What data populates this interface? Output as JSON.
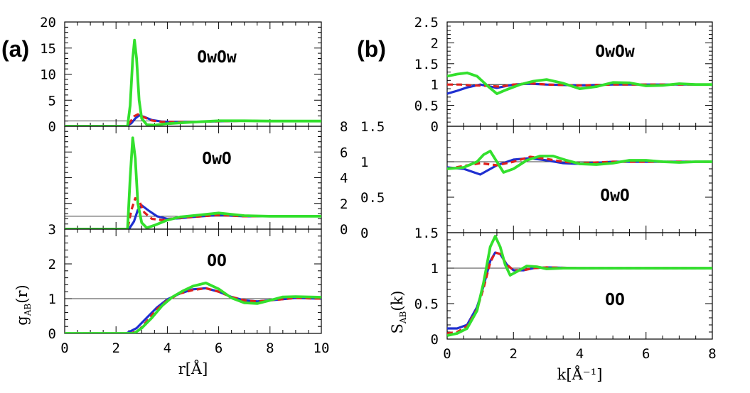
{
  "chart_data": [
    {
      "id": "a",
      "panel_label": "(a)",
      "type": "line",
      "xlabel": {
        "main": "r",
        "unit_open": "[",
        "unit": "Å",
        "unit_close": "]"
      },
      "ylabel": {
        "main": "g",
        "sub": "AB",
        "arg": "(r)"
      },
      "xlim": [
        0,
        10
      ],
      "xticks": [
        "0",
        "2",
        "4",
        "6",
        "8",
        "10"
      ],
      "legend": [],
      "series_style": {
        "blue": "#1f2fd0",
        "red": "#e0201c",
        "green": "#33e02d"
      },
      "subplots": [
        {
          "name": "OwOw",
          "label": "OwOw",
          "ylim": [
            0,
            20
          ],
          "y_side": "left",
          "yticks": [
            "0",
            "5",
            "10",
            "15",
            "20"
          ],
          "reference_line": 1,
          "series": [
            {
              "name": "blue",
              "x": [
                0,
                2.4,
                2.6,
                2.75,
                2.9,
                3.1,
                3.4,
                3.8,
                4.3,
                5,
                6,
                7,
                8,
                9,
                10
              ],
              "y": [
                0,
                0,
                0.6,
                1.5,
                2.1,
                1.8,
                1.2,
                0.9,
                0.8,
                0.85,
                0.95,
                1.05,
                1.0,
                1.0,
                1.0
              ]
            },
            {
              "name": "red",
              "dash": true,
              "x": [
                0,
                2.4,
                2.55,
                2.7,
                2.85,
                3.1,
                3.4,
                3.8,
                4.3,
                5,
                6,
                7,
                8,
                9,
                10
              ],
              "y": [
                0,
                0,
                0.8,
                1.9,
                2.3,
                1.7,
                1.1,
                0.85,
                0.8,
                0.85,
                0.95,
                1.05,
                1.0,
                1.0,
                1.0
              ]
            },
            {
              "name": "green",
              "x": [
                0,
                2.45,
                2.55,
                2.65,
                2.72,
                2.8,
                2.9,
                3.0,
                3.2,
                3.5,
                4,
                5,
                6,
                7,
                8,
                9,
                10
              ],
              "y": [
                0,
                0,
                4.0,
                13.0,
                16.5,
                13.0,
                5.0,
                1.5,
                0.3,
                0.2,
                0.5,
                0.8,
                1.05,
                1.05,
                1.0,
                1.0,
                1.0
              ]
            }
          ]
        },
        {
          "name": "OwO",
          "label": "OwO",
          "ylim": [
            0,
            8
          ],
          "y_side": "right",
          "yticks": [
            "0",
            "2",
            "4",
            "6",
            "8"
          ],
          "reference_line": 1,
          "series": [
            {
              "name": "blue",
              "x": [
                0,
                2.5,
                2.7,
                2.85,
                3.0,
                3.3,
                3.6,
                4.0,
                4.5,
                5.0,
                6.0,
                7.0,
                8,
                9,
                10
              ],
              "y": [
                0,
                0,
                0.6,
                1.5,
                1.85,
                1.4,
                1.0,
                0.8,
                0.85,
                0.95,
                1.1,
                1.0,
                1.0,
                1.0,
                1.0
              ]
            },
            {
              "name": "red",
              "dash": true,
              "x": [
                0,
                2.45,
                2.6,
                2.75,
                2.9,
                3.1,
                3.4,
                3.8,
                4.3,
                5.0,
                6.0,
                7.0,
                8,
                9,
                10
              ],
              "y": [
                0,
                0,
                1.5,
                2.4,
                2.2,
                1.3,
                0.8,
                0.7,
                0.85,
                0.95,
                1.1,
                1.0,
                1.0,
                1.0,
                1.0
              ]
            },
            {
              "name": "green",
              "x": [
                0,
                2.45,
                2.55,
                2.65,
                2.75,
                2.85,
                3.0,
                3.2,
                3.5,
                4.0,
                4.5,
                5.0,
                6.0,
                7.0,
                8,
                9,
                10
              ],
              "y": [
                0,
                0,
                4.0,
                7.1,
                5.5,
                2.0,
                0.5,
                0.1,
                0.3,
                0.7,
                0.95,
                1.05,
                1.25,
                1.05,
                1.0,
                1.0,
                1.0
              ]
            }
          ]
        },
        {
          "name": "OO",
          "label": "OO",
          "ylim": [
            0,
            3
          ],
          "y_side": "left",
          "yticks": [
            "0",
            "1",
            "2",
            "3"
          ],
          "reference_line": 1,
          "series": [
            {
              "name": "blue",
              "x": [
                0,
                2.4,
                2.8,
                3.2,
                3.6,
                4.0,
                4.5,
                5.0,
                5.5,
                6.0,
                6.5,
                7.0,
                7.5,
                8.0,
                9.0,
                10.0
              ],
              "y": [
                0,
                0,
                0.15,
                0.45,
                0.75,
                0.98,
                1.15,
                1.27,
                1.3,
                1.2,
                1.05,
                0.95,
                0.92,
                0.95,
                1.02,
                1.0
              ]
            },
            {
              "name": "red",
              "dash": true,
              "x": [
                0,
                2.6,
                2.9,
                3.2,
                3.6,
                4.0,
                4.5,
                5.0,
                5.5,
                6.0,
                6.5,
                7.0,
                7.5,
                8.0,
                9.0,
                10.0
              ],
              "y": [
                0,
                0,
                0.1,
                0.35,
                0.7,
                0.95,
                1.15,
                1.25,
                1.3,
                1.2,
                1.05,
                0.95,
                0.92,
                0.95,
                1.02,
                1.0
              ]
            },
            {
              "name": "green",
              "x": [
                0,
                2.7,
                3.0,
                3.4,
                3.8,
                4.2,
                4.6,
                5.0,
                5.5,
                6.0,
                6.5,
                7.0,
                7.5,
                8.0,
                8.5,
                9.0,
                10.0
              ],
              "y": [
                0,
                0,
                0.15,
                0.45,
                0.8,
                1.05,
                1.22,
                1.36,
                1.45,
                1.28,
                1.02,
                0.88,
                0.86,
                0.95,
                1.05,
                1.06,
                1.04
              ]
            }
          ]
        }
      ]
    },
    {
      "id": "b",
      "panel_label": "(b)",
      "type": "line",
      "xlabel": {
        "main": "k",
        "unit_open": "[",
        "unit": "Å⁻¹",
        "unit_close": "]"
      },
      "ylabel": {
        "main": "S",
        "sub": "AB",
        "arg": "(k)"
      },
      "xlim": [
        0,
        8
      ],
      "xticks": [
        "0",
        "2",
        "4",
        "6",
        "8"
      ],
      "legend": [],
      "subplots": [
        {
          "name": "OwOw",
          "label": "OwOw",
          "ylim": [
            0,
            2.5
          ],
          "y_side": "left",
          "yticks": [
            "0",
            "0.5",
            "1",
            "1.5",
            "2",
            "2.5"
          ],
          "reference_line": 1,
          "series": [
            {
              "name": "blue",
              "x": [
                0,
                0.3,
                0.6,
                1.0,
                1.5,
                2.0,
                2.5,
                3.0,
                4.0,
                5.0,
                6.0,
                7.0,
                8.0
              ],
              "y": [
                0.78,
                0.85,
                0.93,
                1.0,
                0.92,
                1.0,
                1.02,
                1.0,
                0.98,
                1.0,
                1.0,
                1.0,
                1.0
              ]
            },
            {
              "name": "red",
              "dash": true,
              "x": [
                0,
                0.4,
                0.8,
                1.2,
                1.6,
                2.0,
                2.5,
                3.0,
                4.0,
                5.0,
                6.0,
                7.0,
                8.0
              ],
              "y": [
                1.0,
                1.0,
                0.98,
                0.97,
                0.95,
                1.0,
                1.03,
                1.0,
                0.98,
                1.0,
                1.0,
                1.0,
                1.0
              ]
            },
            {
              "name": "green",
              "x": [
                0,
                0.3,
                0.6,
                0.9,
                1.2,
                1.5,
                1.8,
                2.2,
                2.6,
                3.0,
                3.5,
                4.0,
                4.5,
                5.0,
                5.5,
                6.0,
                6.5,
                7.0,
                7.5,
                8.0
              ],
              "y": [
                1.2,
                1.25,
                1.28,
                1.2,
                0.98,
                0.78,
                0.88,
                1.0,
                1.08,
                1.12,
                1.03,
                0.9,
                0.95,
                1.05,
                1.04,
                0.97,
                0.98,
                1.02,
                1.0,
                1.0
              ]
            }
          ]
        },
        {
          "name": "OwO",
          "label": "OwO",
          "ylim": [
            0,
            1.5
          ],
          "y_side": "right",
          "yticks": [
            "0",
            "0.5",
            "1",
            "1.5"
          ],
          "reference_line": 1,
          "series": [
            {
              "name": "blue",
              "x": [
                0,
                0.5,
                1.0,
                1.5,
                2.0,
                2.5,
                3.0,
                3.5,
                4.0,
                5.0,
                6.0,
                7.0,
                8.0
              ],
              "y": [
                0.92,
                0.9,
                0.82,
                0.95,
                1.03,
                1.05,
                1.02,
                0.98,
                0.97,
                1.0,
                1.0,
                1.0,
                1.0
              ]
            },
            {
              "name": "red",
              "dash": true,
              "x": [
                0,
                0.5,
                1.0,
                1.5,
                2.0,
                2.5,
                3.0,
                3.5,
                4.0,
                5.0,
                6.0,
                7.0,
                8.0
              ],
              "y": [
                0.9,
                0.94,
                0.98,
                0.95,
                1.0,
                1.07,
                1.04,
                1.0,
                0.98,
                1.0,
                1.0,
                1.0,
                1.0
              ]
            },
            {
              "name": "green",
              "x": [
                0,
                0.5,
                0.9,
                1.1,
                1.3,
                1.5,
                1.7,
                2.0,
                2.4,
                2.8,
                3.2,
                3.6,
                4.0,
                4.5,
                5.0,
                5.5,
                6.0,
                6.5,
                7.0,
                7.5,
                8.0
              ],
              "y": [
                0.9,
                0.92,
                1.0,
                1.1,
                1.15,
                1.0,
                0.85,
                0.9,
                1.02,
                1.08,
                1.08,
                1.02,
                0.97,
                0.96,
                0.98,
                1.02,
                1.02,
                1.0,
                0.99,
                1.0,
                1.0
              ]
            }
          ]
        },
        {
          "name": "OO",
          "label": "OO",
          "ylim": [
            0,
            1.5
          ],
          "y_side": "left",
          "yticks": [
            "0",
            "0.5",
            "1",
            "1.5"
          ],
          "reference_line": 1,
          "series": [
            {
              "name": "blue",
              "x": [
                0,
                0.3,
                0.6,
                0.9,
                1.1,
                1.3,
                1.45,
                1.6,
                1.8,
                2.0,
                2.3,
                2.6,
                3.0,
                4.0,
                5.0,
                6.0,
                7.0,
                8.0
              ],
              "y": [
                0.15,
                0.15,
                0.2,
                0.45,
                0.75,
                1.1,
                1.22,
                1.2,
                1.05,
                0.97,
                0.97,
                1.0,
                1.01,
                1.0,
                1.0,
                1.0,
                1.0,
                1.0
              ]
            },
            {
              "name": "red",
              "dash": true,
              "x": [
                0,
                0.3,
                0.6,
                0.9,
                1.1,
                1.3,
                1.45,
                1.6,
                1.8,
                2.0,
                2.3,
                2.6,
                3.0,
                4.0,
                5.0,
                6.0,
                7.0,
                8.0
              ],
              "y": [
                0.08,
                0.1,
                0.18,
                0.42,
                0.72,
                1.08,
                1.22,
                1.2,
                1.05,
                0.97,
                0.97,
                1.0,
                1.01,
                1.0,
                1.0,
                1.0,
                1.0,
                1.0
              ]
            },
            {
              "name": "green",
              "x": [
                0,
                0.3,
                0.6,
                0.9,
                1.1,
                1.3,
                1.45,
                1.6,
                1.75,
                1.9,
                2.1,
                2.4,
                2.7,
                3.0,
                3.5,
                4.0,
                5.0,
                6.0,
                7.0,
                8.0
              ],
              "y": [
                0.05,
                0.08,
                0.15,
                0.4,
                0.8,
                1.3,
                1.45,
                1.3,
                1.05,
                0.9,
                0.95,
                1.03,
                1.02,
                0.99,
                1.0,
                1.0,
                1.0,
                1.0,
                1.0,
                1.0
              ]
            }
          ]
        }
      ]
    }
  ]
}
